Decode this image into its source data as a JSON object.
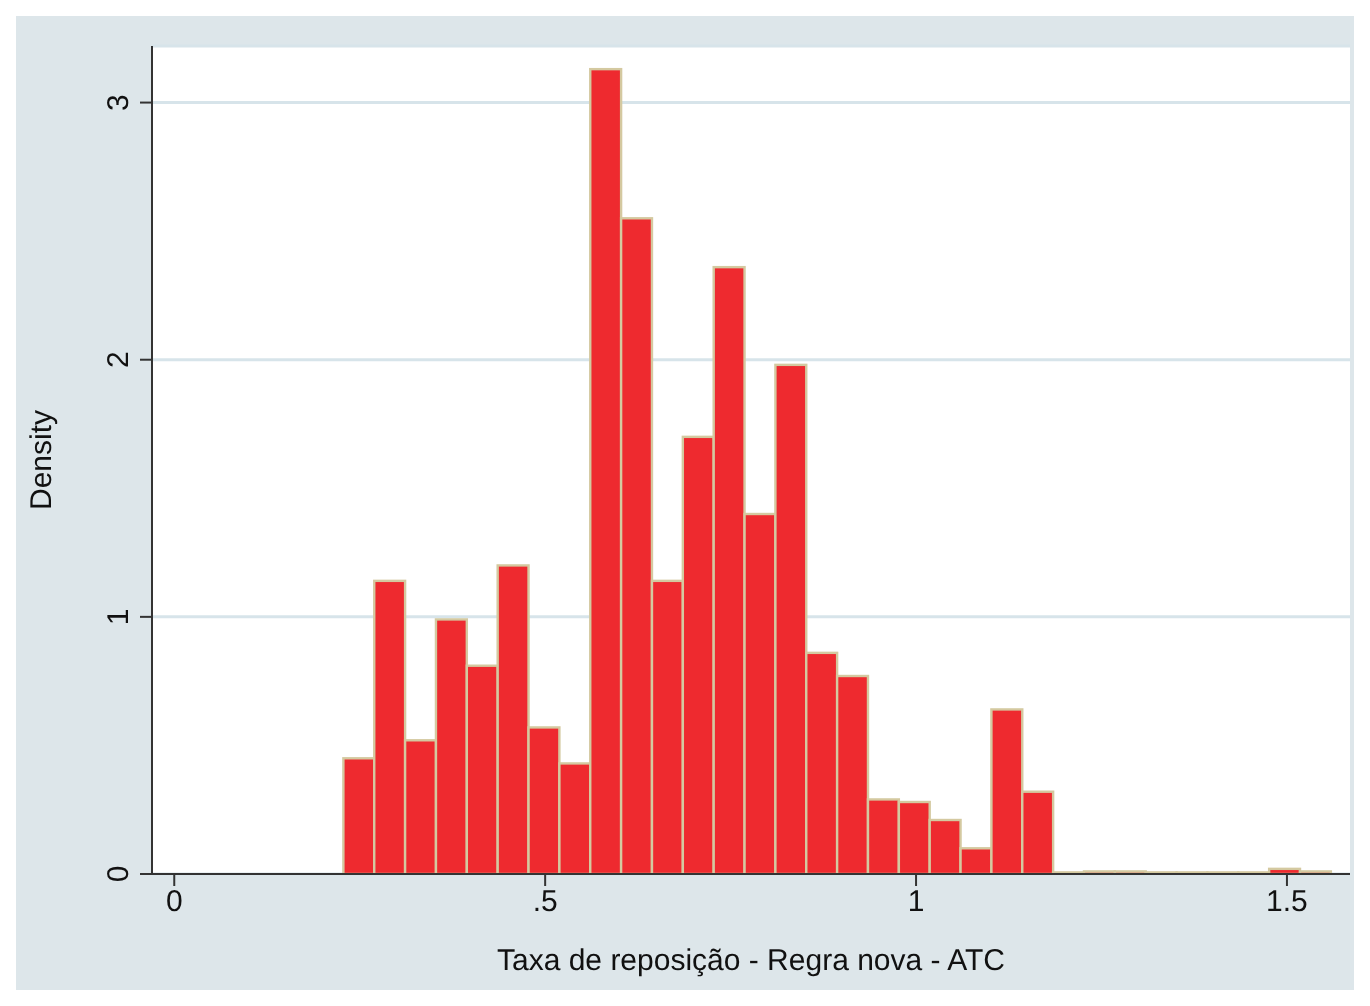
{
  "chart_data": {
    "type": "histogram",
    "xlabel": "Taxa de reposição - Regra nova - ATC",
    "ylabel": "Density",
    "bins": [
      0.228,
      0.2696,
      0.3112,
      0.3528,
      0.3944,
      0.436,
      0.4776,
      0.5192,
      0.5608,
      0.6024,
      0.644,
      0.6856,
      0.7272,
      0.7688,
      0.8104,
      0.852,
      0.8936,
      0.9352,
      0.9768,
      1.0184,
      1.06,
      1.1016,
      1.1432,
      1.1848,
      1.2264,
      1.268,
      1.3096,
      1.3512,
      1.3928,
      1.4344,
      1.476,
      1.5176,
      1.5592
    ],
    "values": [
      0.45,
      1.14,
      0.52,
      0.99,
      0.81,
      1.2,
      0.57,
      0.43,
      3.13,
      2.55,
      1.14,
      1.7,
      2.36,
      1.4,
      1.98,
      0.86,
      0.77,
      0.29,
      0.28,
      0.21,
      0.1,
      0.64,
      0.32,
      0,
      0.01,
      0.01,
      0,
      0,
      0,
      0,
      0.02,
      0.01
    ],
    "color": "#ee2a2f",
    "xlim": [
      -0.03,
      1.585
    ],
    "xticks": [
      0,
      {
        "value": 0.5,
        "label": ".5"
      },
      1,
      1.5
    ],
    "ylim": [
      0,
      3.22
    ],
    "yticks": [
      0,
      1,
      2,
      3
    ],
    "grid": "y"
  }
}
